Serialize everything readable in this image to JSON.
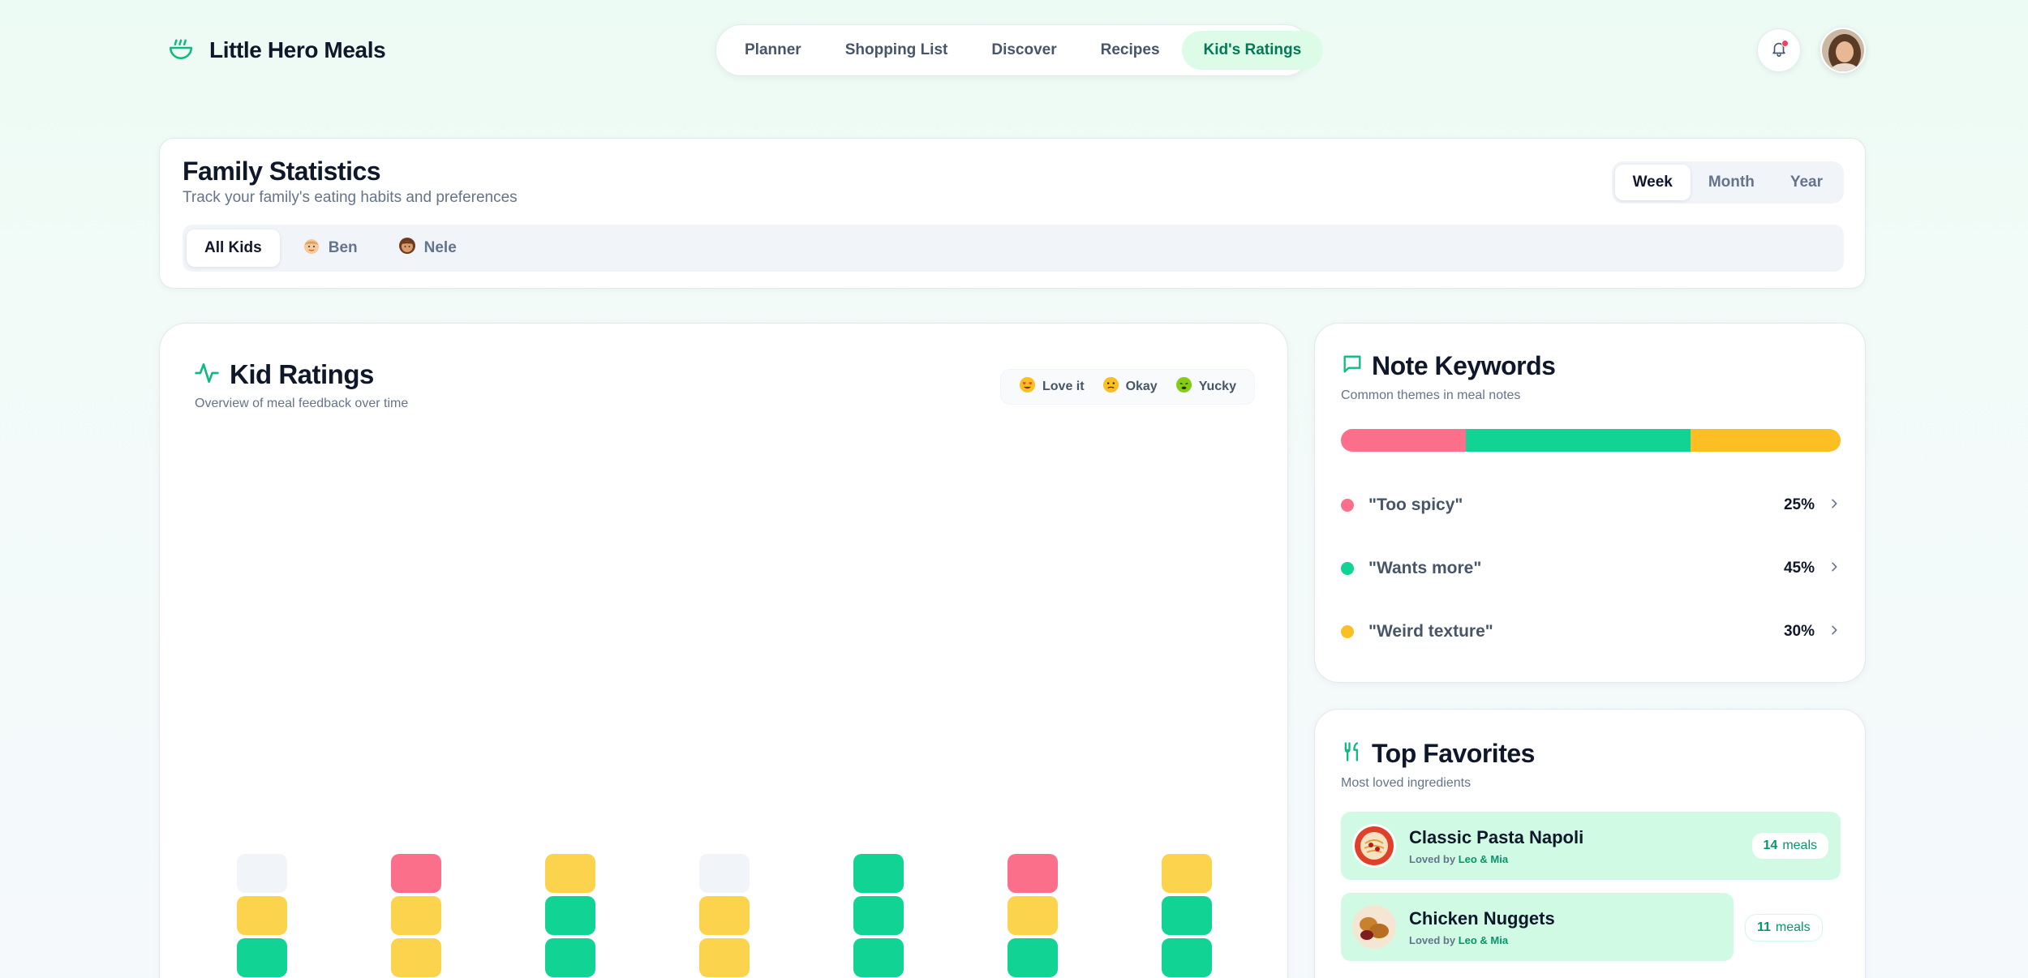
{
  "header": {
    "brand": "Little Hero Meals",
    "nav": [
      {
        "label": "Planner",
        "active": false
      },
      {
        "label": "Shopping List",
        "active": false
      },
      {
        "label": "Discover",
        "active": false
      },
      {
        "label": "Recipes",
        "active": false
      },
      {
        "label": "Kid's Ratings",
        "active": true
      }
    ],
    "notification_icon": "bell-icon",
    "has_unread": true
  },
  "stats": {
    "title": "Family Statistics",
    "subtitle": "Track your family's eating habits and preferences",
    "periods": [
      "Week",
      "Month",
      "Year"
    ],
    "active_period": "Week",
    "kids": [
      {
        "label": "All Kids",
        "active": true
      },
      {
        "label": "Ben",
        "active": false
      },
      {
        "label": "Nele",
        "active": false
      }
    ]
  },
  "ratings": {
    "title": "Kid Ratings",
    "subtitle": "Overview of meal feedback over time",
    "legend": [
      {
        "label": "Love it",
        "icon": "heart-eyes-face-icon"
      },
      {
        "label": "Okay",
        "icon": "neutral-face-icon"
      },
      {
        "label": "Yucky",
        "icon": "nauseated-face-icon"
      }
    ]
  },
  "chart_data": {
    "type": "bar",
    "stacked": true,
    "categories": [
      "",
      "",
      "",
      "",
      "",
      "",
      ""
    ],
    "series": [
      {
        "name": "Love it",
        "color": "#10d394",
        "values": [
          1,
          0,
          2,
          0,
          3,
          1,
          2
        ]
      },
      {
        "name": "Okay",
        "color": "#fcd34d",
        "values": [
          1,
          2,
          1,
          2,
          0,
          1,
          1
        ]
      },
      {
        "name": "Yucky",
        "color": "#fb6f8a",
        "values": [
          0,
          1,
          0,
          0,
          0,
          1,
          0
        ]
      },
      {
        "name": "",
        "color": "#f1f5f9",
        "values": [
          1,
          0,
          0,
          1,
          0,
          0,
          0
        ]
      }
    ]
  },
  "keywords": {
    "title": "Note Keywords",
    "subtitle": "Common themes in meal notes",
    "items": [
      {
        "label": "\"Too spicy\"",
        "percent": "25%",
        "value": 25,
        "color": "#fb6f8a"
      },
      {
        "label": "\"Wants more\"",
        "percent": "45%",
        "value": 45,
        "color": "#10d394"
      },
      {
        "label": "\"Weird texture\"",
        "percent": "30%",
        "value": 30,
        "color": "#fbbf24"
      }
    ]
  },
  "favorites": {
    "title": "Top Favorites",
    "subtitle": "Most loved ingredients",
    "loved_prefix": "Loved by",
    "items": [
      {
        "name": "Classic Pasta Napoli",
        "loved_by": "Leo & Mia",
        "count": "14",
        "unit": "meals"
      },
      {
        "name": "Chicken Nuggets",
        "loved_by": "Leo & Mia",
        "count": "11",
        "unit": "meals"
      }
    ]
  }
}
